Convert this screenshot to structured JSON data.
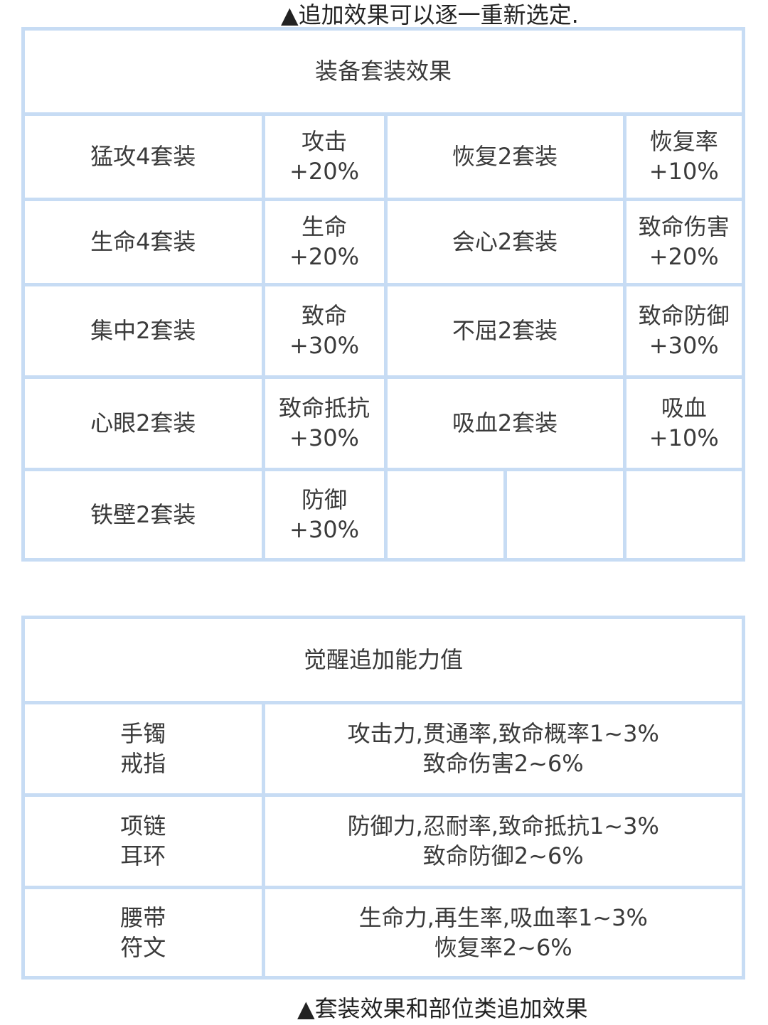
{
  "top_caption": "▲追加效果可以逐一重新选定.",
  "set_table": {
    "title": "装备套装效果",
    "rows": [
      [
        "猛攻4套装",
        "攻击\n+20%",
        "恢复2套装",
        "恢复率\n+10%"
      ],
      [
        "生命4套装",
        "生命\n+20%",
        "会心2套装",
        "致命伤害\n+20%"
      ],
      [
        "集中2套装",
        "致命\n+30%",
        "不屈2套装",
        "致命防御\n+30%"
      ],
      [
        "心眼2套装",
        "致命抵抗\n+30%",
        "吸血2套装",
        "吸血\n+10%"
      ],
      [
        "铁壁2套装",
        "防御\n+30%"
      ]
    ]
  },
  "awaken_table": {
    "title": "觉醒追加能力值",
    "rows": [
      [
        "手镯\n戒指",
        "攻击力,贯通率,致命概率1~3%\n致命伤害2~6%"
      ],
      [
        "项链\n耳环",
        "防御力,忍耐率,致命抵抗1~3%\n致命防御2~6%"
      ],
      [
        "腰带\n符文",
        "生命力,再生率,吸血率1~3%\n恢复率2~6%"
      ]
    ]
  },
  "bottom_caption": "▲套装效果和部位类追加效果"
}
